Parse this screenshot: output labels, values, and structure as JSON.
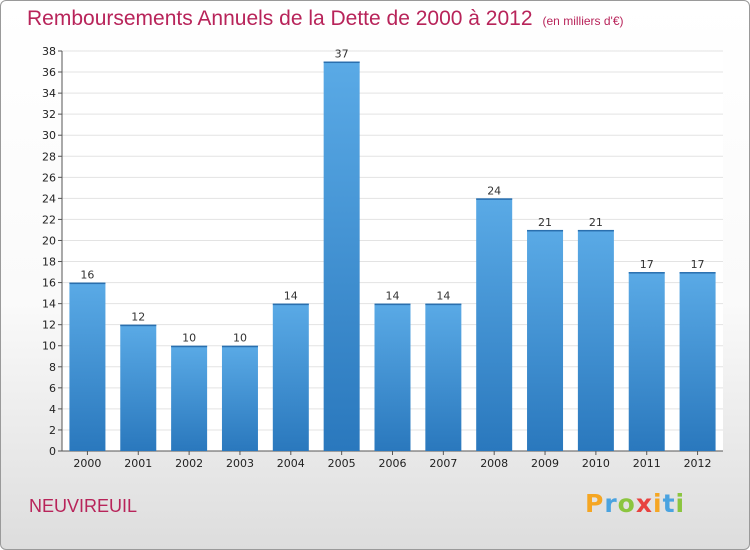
{
  "title": "Remboursements Annuels de la Dette de 2000 à 2012",
  "subtitle": "(en milliers d'€)",
  "city": "NEUVIREUIL",
  "logo": {
    "letters": [
      "P",
      "r",
      "o",
      "x",
      "i",
      "t",
      "i"
    ],
    "colors": [
      "#f5a623",
      "#4aa3e0",
      "#8bc53f",
      "#e8423f",
      "#f5a623",
      "#4aa3e0",
      "#8bc53f"
    ]
  },
  "colors": {
    "bar": "#3d8fd1",
    "bar_light": "#5aaae6",
    "bar_dark": "#2a78bd",
    "title": "#b8245a"
  },
  "chart_data": {
    "type": "bar",
    "categories": [
      "2000",
      "2001",
      "2002",
      "2003",
      "2004",
      "2005",
      "2006",
      "2007",
      "2008",
      "2009",
      "2010",
      "2011",
      "2012"
    ],
    "values": [
      16,
      12,
      10,
      10,
      14,
      37,
      14,
      14,
      24,
      21,
      21,
      17,
      17
    ],
    "ylim": [
      0,
      38
    ],
    "yticks": [
      0,
      2,
      4,
      6,
      8,
      10,
      12,
      14,
      16,
      18,
      20,
      22,
      24,
      26,
      28,
      30,
      32,
      34,
      36,
      38
    ],
    "grid": true
  }
}
